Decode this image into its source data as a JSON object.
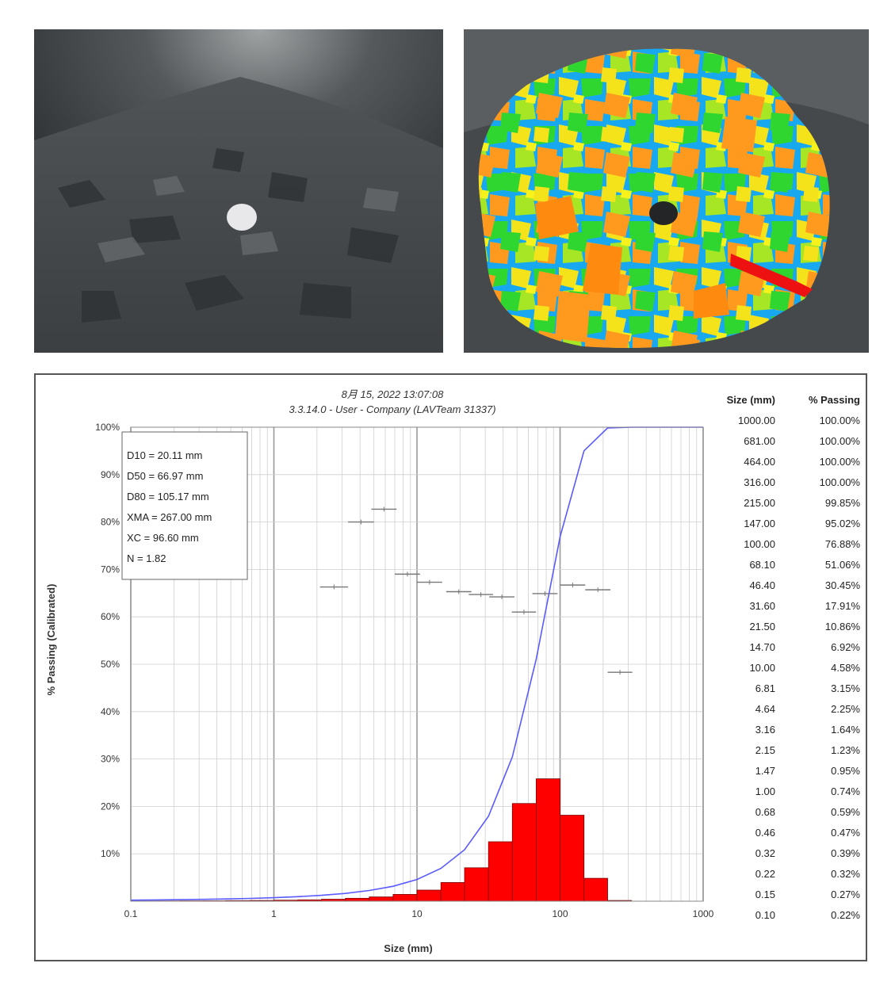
{
  "photos": {
    "left": {
      "icon": "rock-pile-photo"
    },
    "right": {
      "icon": "rock-pile-fragmentation-overlay"
    }
  },
  "colors": {
    "curve": "#5a5aff",
    "bars": "#ff0000",
    "markers": "#777777",
    "grid": "#cfcfcf",
    "major_grid": "#999999"
  },
  "chart_data": {
    "type": "bar",
    "title_line1": "8月 15, 2022 13:07:08",
    "title_line2": "3.3.14.0  -  User - Company (LAVTeam 31337)",
    "xlabel": "Size (mm)",
    "ylabel": "% Passing (Calibrated)",
    "x_scale": "log",
    "xlim": [
      0.1,
      1000
    ],
    "ylim": [
      0,
      100
    ],
    "x_ticks": [
      "0.1",
      "1",
      "10",
      "100",
      "1000"
    ],
    "y_ticks": [
      "10%",
      "20%",
      "30%",
      "40%",
      "50%",
      "60%",
      "70%",
      "80%",
      "90%",
      "100%"
    ],
    "stats": [
      "D10 = 20.11 mm",
      "D50 = 66.97 mm",
      "D80 = 105.17 mm",
      "XMA = 267.00 mm",
      "XC = 96.60 mm",
      "N = 1.82"
    ],
    "cumulative_curve": {
      "size": [
        0.1,
        0.15,
        0.22,
        0.32,
        0.46,
        0.68,
        1.0,
        1.47,
        2.15,
        3.16,
        4.64,
        6.81,
        10.0,
        14.7,
        21.5,
        31.6,
        46.4,
        68.1,
        100.0,
        147.0,
        215.0,
        316.0,
        464.0,
        681.0,
        1000.0
      ],
      "passing": [
        0.22,
        0.27,
        0.32,
        0.39,
        0.47,
        0.59,
        0.74,
        0.95,
        1.23,
        1.64,
        2.25,
        3.15,
        4.58,
        6.92,
        10.86,
        17.91,
        30.45,
        51.06,
        76.88,
        95.02,
        99.85,
        100.0,
        100.0,
        100.0,
        100.0
      ]
    },
    "histogram": {
      "bins": [
        [
          0.1,
          0.15
        ],
        [
          0.15,
          0.22
        ],
        [
          0.22,
          0.32
        ],
        [
          0.32,
          0.46
        ],
        [
          0.46,
          0.68
        ],
        [
          0.68,
          1.0
        ],
        [
          1.0,
          1.47
        ],
        [
          1.47,
          2.15
        ],
        [
          2.15,
          3.16
        ],
        [
          3.16,
          4.64
        ],
        [
          4.64,
          6.81
        ],
        [
          6.81,
          10.0
        ],
        [
          10.0,
          14.7
        ],
        [
          14.7,
          21.5
        ],
        [
          21.5,
          31.6
        ],
        [
          31.6,
          46.4
        ],
        [
          46.4,
          68.1
        ],
        [
          68.1,
          100.0
        ],
        [
          100.0,
          147.0
        ],
        [
          147.0,
          215.0
        ],
        [
          215.0,
          316.0
        ]
      ],
      "values": [
        0.05,
        0.05,
        0.07,
        0.08,
        0.12,
        0.15,
        0.21,
        0.28,
        0.41,
        0.61,
        0.9,
        1.43,
        2.34,
        3.94,
        7.05,
        12.54,
        20.61,
        25.82,
        18.14,
        4.83,
        0.15
      ]
    },
    "markers": [
      {
        "x": [
          2.1,
          3.3
        ],
        "y": 66.3
      },
      {
        "x": [
          3.3,
          5.0
        ],
        "y": 80.0
      },
      {
        "x": [
          4.8,
          7.2
        ],
        "y": 82.7
      },
      {
        "x": [
          7.0,
          10.5
        ],
        "y": 69.0
      },
      {
        "x": [
          10.0,
          15.0
        ],
        "y": 67.3
      },
      {
        "x": [
          16.0,
          24.0
        ],
        "y": 65.3
      },
      {
        "x": [
          23.0,
          34.0
        ],
        "y": 64.7
      },
      {
        "x": [
          32.0,
          48.0
        ],
        "y": 64.2
      },
      {
        "x": [
          46.0,
          68.0
        ],
        "y": 61.0
      },
      {
        "x": [
          64.0,
          96.0
        ],
        "y": 64.9
      },
      {
        "x": [
          100.0,
          150.0
        ],
        "y": 66.7
      },
      {
        "x": [
          150.0,
          225.0
        ],
        "y": 65.7
      },
      {
        "x": [
          215.0,
          320.0
        ],
        "y": 48.3
      }
    ],
    "table": {
      "headers": [
        "Size (mm)",
        "% Passing"
      ],
      "rows": [
        [
          "1000.00",
          "100.00%"
        ],
        [
          "681.00",
          "100.00%"
        ],
        [
          "464.00",
          "100.00%"
        ],
        [
          "316.00",
          "100.00%"
        ],
        [
          "215.00",
          "99.85%"
        ],
        [
          "147.00",
          "95.02%"
        ],
        [
          "100.00",
          "76.88%"
        ],
        [
          "68.10",
          "51.06%"
        ],
        [
          "46.40",
          "30.45%"
        ],
        [
          "31.60",
          "17.91%"
        ],
        [
          "21.50",
          "10.86%"
        ],
        [
          "14.70",
          "6.92%"
        ],
        [
          "10.00",
          "4.58%"
        ],
        [
          "6.81",
          "3.15%"
        ],
        [
          "4.64",
          "2.25%"
        ],
        [
          "3.16",
          "1.64%"
        ],
        [
          "2.15",
          "1.23%"
        ],
        [
          "1.47",
          "0.95%"
        ],
        [
          "1.00",
          "0.74%"
        ],
        [
          "0.68",
          "0.59%"
        ],
        [
          "0.46",
          "0.47%"
        ],
        [
          "0.32",
          "0.39%"
        ],
        [
          "0.22",
          "0.32%"
        ],
        [
          "0.15",
          "0.27%"
        ],
        [
          "0.10",
          "0.22%"
        ]
      ]
    }
  }
}
